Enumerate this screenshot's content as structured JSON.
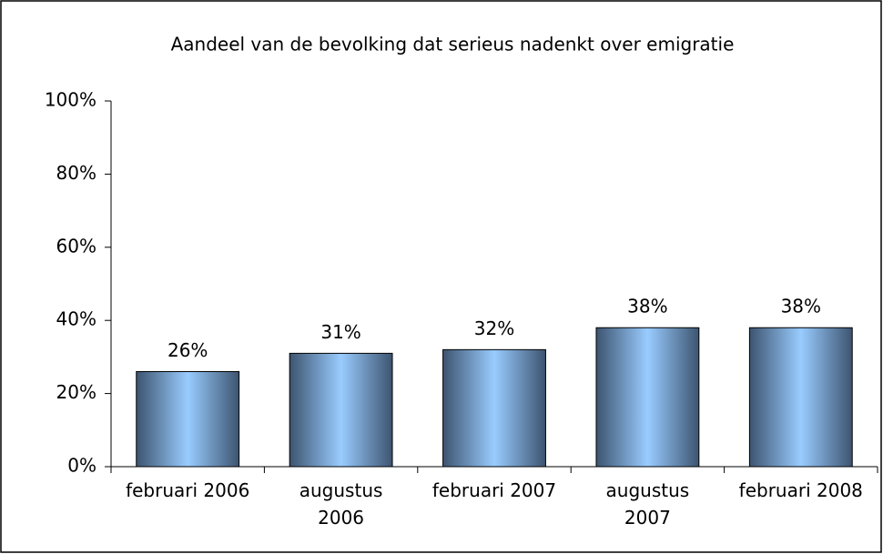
{
  "chart_data": {
    "type": "bar",
    "title": "Aandeel van de bevolking dat serieus nadenkt over emigratie",
    "categories": [
      "februari 2006",
      "augustus\n2006",
      "februari 2007",
      "augustus\n2007",
      "februari 2008"
    ],
    "values": [
      26,
      31,
      32,
      38,
      38
    ],
    "value_labels": [
      "26%",
      "31%",
      "32%",
      "38%",
      "38%"
    ],
    "color": "#99ccff",
    "ylim": [
      0,
      100
    ],
    "yticks": [
      {
        "value": 0,
        "label": "0%"
      },
      {
        "value": 20,
        "label": "20%"
      },
      {
        "value": 40,
        "label": "40%"
      },
      {
        "value": 60,
        "label": "60%"
      },
      {
        "value": 80,
        "label": "80%"
      },
      {
        "value": 100,
        "label": "100%"
      }
    ],
    "grid": false
  }
}
